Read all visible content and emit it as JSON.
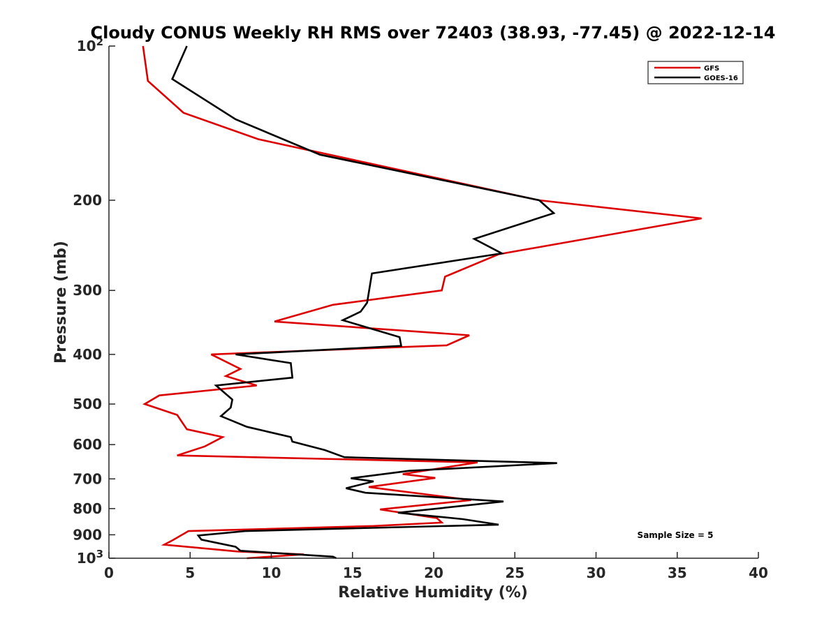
{
  "chart_data": {
    "type": "line",
    "title": "Cloudy CONUS Weekly RH RMS over 72403 (38.93, -77.45) @ 2022-12-14",
    "xlabel": "Relative Humidity (%)",
    "ylabel": "Pressure (mb)",
    "xlim": [
      0,
      40
    ],
    "ylim": [
      100,
      1000
    ],
    "y_scale": "log",
    "y_reversed": true,
    "x_ticks": [
      0,
      5,
      10,
      15,
      20,
      25,
      30,
      35,
      40
    ],
    "y_ticks": [
      {
        "value": 100,
        "label": "10",
        "sup": "2"
      },
      {
        "value": 200,
        "label": "200"
      },
      {
        "value": 300,
        "label": "300"
      },
      {
        "value": 400,
        "label": "400"
      },
      {
        "value": 500,
        "label": "500"
      },
      {
        "value": 600,
        "label": "600"
      },
      {
        "value": 700,
        "label": "700"
      },
      {
        "value": 800,
        "label": "800"
      },
      {
        "value": 900,
        "label": "900"
      },
      {
        "value": 1000,
        "label": "10",
        "sup": "3"
      }
    ],
    "grid": false,
    "legend_position": "top-right",
    "annotation": "Sample Size = 5",
    "series": [
      {
        "name": "GFS",
        "color": "#dd0000",
        "points": [
          [
            2.1,
            100
          ],
          [
            2.4,
            117
          ],
          [
            4.6,
            135
          ],
          [
            9.2,
            152
          ],
          [
            26.5,
            200
          ],
          [
            36.5,
            217
          ],
          [
            31.0,
            233
          ],
          [
            24.0,
            255
          ],
          [
            20.7,
            282
          ],
          [
            20.5,
            300
          ],
          [
            13.8,
            320
          ],
          [
            10.2,
            345
          ],
          [
            22.2,
            367
          ],
          [
            20.8,
            384
          ],
          [
            6.3,
            400
          ],
          [
            8.1,
            427
          ],
          [
            7.2,
            441
          ],
          [
            9.1,
            460
          ],
          [
            3.1,
            481
          ],
          [
            2.2,
            500
          ],
          [
            4.2,
            525
          ],
          [
            4.8,
            560
          ],
          [
            7.0,
            580
          ],
          [
            5.9,
            605
          ],
          [
            4.2,
            630
          ],
          [
            22.7,
            650
          ],
          [
            18.1,
            685
          ],
          [
            20.1,
            697
          ],
          [
            16.0,
            726
          ],
          [
            17.3,
            735
          ],
          [
            22.3,
            770
          ],
          [
            16.7,
            803
          ],
          [
            20.2,
            835
          ],
          [
            20.5,
            852
          ],
          [
            16.3,
            865
          ],
          [
            4.9,
            885
          ],
          [
            3.9,
            923
          ],
          [
            3.4,
            941
          ],
          [
            7.9,
            970
          ],
          [
            12.0,
            983
          ],
          [
            8.5,
            1000
          ]
        ]
      },
      {
        "name": "GOES-16",
        "color": "#000000",
        "points": [
          [
            4.8,
            100
          ],
          [
            3.9,
            116
          ],
          [
            7.8,
            139
          ],
          [
            13.0,
            163
          ],
          [
            26.5,
            200
          ],
          [
            27.4,
            212
          ],
          [
            22.5,
            238
          ],
          [
            24.2,
            254
          ],
          [
            16.2,
            278
          ],
          [
            15.9,
            317
          ],
          [
            15.5,
            330
          ],
          [
            14.4,
            343
          ],
          [
            17.9,
            370
          ],
          [
            18.0,
            385
          ],
          [
            7.8,
            400
          ],
          [
            11.2,
            416
          ],
          [
            11.3,
            444
          ],
          [
            6.6,
            460
          ],
          [
            7.6,
            490
          ],
          [
            7.5,
            508
          ],
          [
            6.9,
            528
          ],
          [
            8.5,
            554
          ],
          [
            11.2,
            580
          ],
          [
            11.3,
            592
          ],
          [
            13.3,
            615
          ],
          [
            14.5,
            635
          ],
          [
            27.6,
            652
          ],
          [
            18.5,
            675
          ],
          [
            14.9,
            698
          ],
          [
            16.3,
            708
          ],
          [
            14.6,
            730
          ],
          [
            15.8,
            745
          ],
          [
            24.3,
            775
          ],
          [
            17.8,
            815
          ],
          [
            21.8,
            839
          ],
          [
            24.0,
            860
          ],
          [
            8.4,
            885
          ],
          [
            5.5,
            903
          ],
          [
            5.7,
            920
          ],
          [
            7.8,
            950
          ],
          [
            8.1,
            967
          ],
          [
            13.8,
            993
          ],
          [
            14.0,
            1000
          ]
        ]
      }
    ]
  }
}
